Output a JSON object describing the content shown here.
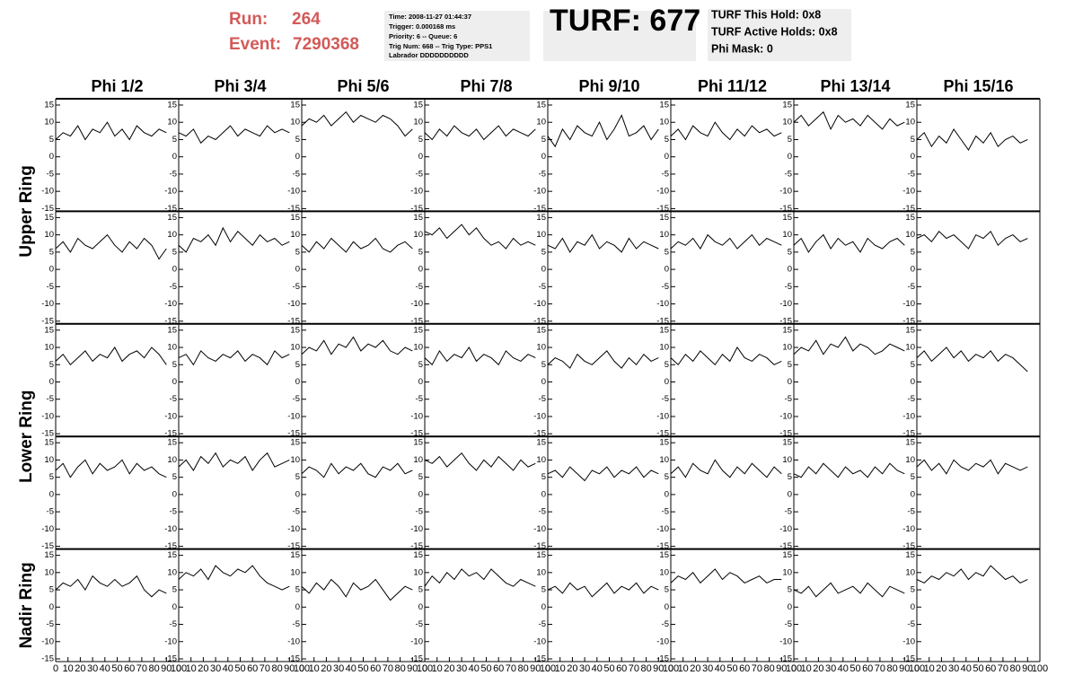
{
  "header": {
    "run_label": "Run:",
    "run": "264",
    "event_label": "Event:",
    "event": "7290368",
    "info": [
      "Time: 2008-11-27 01:44:37",
      "Trigger: 0.000168 ms",
      "Priority: 6 -- Queue: 6",
      "Trig Num: 668 -- Trig Type: PPS1",
      "Labrador DDDDDDDDDD"
    ],
    "turf": "TURF: 677",
    "turf_info": [
      "TURF This Hold: 0x8",
      "TURF Active Holds: 0x8",
      "Phi Mask: 0"
    ]
  },
  "chart_data": {
    "type": "line",
    "columns": [
      "Phi 1/2",
      "Phi 3/4",
      "Phi 5/6",
      "Phi 7/8",
      "Phi 9/10",
      "Phi 11/12",
      "Phi 13/14",
      "Phi 15/16"
    ],
    "row_labels": [
      "Upper Ring",
      "Lower Ring",
      "Nadir Ring"
    ],
    "color": "#000000",
    "xlim": [
      0,
      100
    ],
    "xticks": [
      0,
      10,
      20,
      30,
      40,
      50,
      60,
      70,
      80,
      90,
      100
    ],
    "ylim": [
      -15,
      15
    ],
    "yticks": [
      -15,
      -10,
      -5,
      0,
      5,
      10,
      15
    ],
    "x": [
      0,
      6,
      12,
      18,
      24,
      30,
      36,
      42,
      48,
      54,
      60,
      66,
      72,
      78,
      84,
      90
    ],
    "series": [
      {
        "values": [
          5,
          7,
          6,
          9,
          5,
          8,
          7,
          10,
          6,
          8,
          5,
          9,
          7,
          6,
          8,
          7
        ]
      },
      {
        "values": [
          7,
          6,
          8,
          4,
          6,
          5,
          7,
          9,
          6,
          8,
          7,
          6,
          9,
          7,
          8,
          7
        ]
      },
      {
        "values": [
          9,
          11,
          10,
          12,
          9,
          11,
          13,
          10,
          12,
          11,
          10,
          12,
          11,
          9,
          6,
          8
        ]
      },
      {
        "values": [
          7,
          5,
          8,
          6,
          9,
          7,
          6,
          8,
          5,
          7,
          9,
          6,
          8,
          7,
          6,
          8
        ]
      },
      {
        "values": [
          6,
          3,
          8,
          5,
          9,
          7,
          6,
          10,
          5,
          8,
          12,
          6,
          7,
          9,
          5,
          8
        ]
      },
      {
        "values": [
          6,
          8,
          5,
          9,
          7,
          6,
          10,
          7,
          5,
          8,
          6,
          9,
          7,
          8,
          6,
          7
        ]
      },
      {
        "values": [
          10,
          12,
          9,
          11,
          13,
          8,
          12,
          10,
          11,
          9,
          12,
          10,
          8,
          11,
          9,
          10
        ]
      },
      {
        "values": [
          5,
          7,
          3,
          6,
          4,
          8,
          5,
          2,
          6,
          4,
          7,
          3,
          5,
          6,
          4,
          5
        ]
      },
      {
        "values": [
          6,
          8,
          5,
          9,
          7,
          6,
          8,
          10,
          7,
          5,
          8,
          6,
          9,
          7,
          3,
          6
        ]
      },
      {
        "values": [
          7,
          5,
          9,
          8,
          10,
          7,
          12,
          8,
          11,
          9,
          7,
          10,
          8,
          9,
          7,
          8
        ]
      },
      {
        "values": [
          7,
          5,
          8,
          6,
          9,
          7,
          5,
          8,
          6,
          7,
          9,
          6,
          5,
          7,
          8,
          6
        ]
      },
      {
        "values": [
          11,
          10,
          12,
          9,
          11,
          13,
          10,
          12,
          9,
          7,
          8,
          6,
          9,
          7,
          8,
          7
        ]
      },
      {
        "values": [
          7,
          6,
          9,
          5,
          8,
          7,
          10,
          6,
          8,
          7,
          5,
          9,
          6,
          8,
          7,
          6
        ]
      },
      {
        "values": [
          6,
          8,
          7,
          9,
          6,
          10,
          8,
          7,
          9,
          6,
          8,
          10,
          7,
          9,
          8,
          7
        ]
      },
      {
        "values": [
          7,
          9,
          5,
          8,
          10,
          6,
          9,
          7,
          8,
          5,
          9,
          7,
          6,
          8,
          9,
          7
        ]
      },
      {
        "values": [
          9,
          10,
          8,
          11,
          9,
          10,
          8,
          6,
          10,
          9,
          11,
          7,
          9,
          10,
          8,
          9
        ]
      },
      {
        "values": [
          6,
          8,
          5,
          7,
          9,
          6,
          8,
          7,
          10,
          6,
          8,
          9,
          7,
          10,
          8,
          5
        ]
      },
      {
        "values": [
          7,
          8,
          5,
          9,
          7,
          6,
          8,
          7,
          9,
          6,
          8,
          7,
          5,
          9,
          7,
          8
        ]
      },
      {
        "values": [
          8,
          10,
          9,
          12,
          8,
          11,
          10,
          13,
          9,
          11,
          10,
          12,
          9,
          8,
          10,
          9
        ]
      },
      {
        "values": [
          7,
          5,
          9,
          6,
          8,
          7,
          10,
          6,
          8,
          7,
          5,
          9,
          7,
          6,
          8,
          7
        ]
      },
      {
        "values": [
          5,
          7,
          6,
          4,
          8,
          6,
          5,
          7,
          9,
          6,
          4,
          7,
          5,
          8,
          6,
          7
        ]
      },
      {
        "values": [
          7,
          5,
          8,
          6,
          9,
          7,
          5,
          8,
          6,
          10,
          7,
          6,
          8,
          7,
          5,
          6
        ]
      },
      {
        "values": [
          8,
          10,
          9,
          12,
          8,
          11,
          10,
          13,
          9,
          11,
          10,
          8,
          9,
          11,
          10,
          9
        ]
      },
      {
        "values": [
          7,
          9,
          6,
          8,
          10,
          7,
          9,
          6,
          8,
          7,
          9,
          6,
          8,
          7,
          5,
          3
        ]
      },
      {
        "values": [
          7,
          9,
          5,
          8,
          10,
          6,
          9,
          7,
          8,
          10,
          6,
          9,
          7,
          8,
          6,
          5
        ]
      },
      {
        "values": [
          8,
          10,
          7,
          11,
          9,
          12,
          8,
          10,
          9,
          11,
          7,
          10,
          12,
          8,
          9,
          10
        ]
      },
      {
        "values": [
          6,
          8,
          7,
          5,
          9,
          6,
          8,
          7,
          9,
          6,
          5,
          8,
          7,
          9,
          6,
          7
        ]
      },
      {
        "values": [
          10,
          9,
          11,
          8,
          10,
          12,
          9,
          7,
          10,
          8,
          11,
          9,
          7,
          10,
          8,
          9
        ]
      },
      {
        "values": [
          6,
          7,
          5,
          8,
          6,
          4,
          7,
          6,
          8,
          5,
          7,
          6,
          8,
          5,
          7,
          6
        ]
      },
      {
        "values": [
          6,
          8,
          5,
          9,
          7,
          6,
          10,
          7,
          5,
          8,
          6,
          9,
          7,
          5,
          8,
          6
        ]
      },
      {
        "values": [
          6,
          5,
          8,
          6,
          9,
          7,
          5,
          8,
          6,
          7,
          5,
          8,
          6,
          9,
          7,
          6
        ]
      },
      {
        "values": [
          8,
          10,
          7,
          9,
          6,
          10,
          8,
          7,
          9,
          8,
          10,
          6,
          9,
          8,
          7,
          8
        ]
      },
      {
        "values": [
          5,
          7,
          6,
          8,
          5,
          9,
          7,
          6,
          8,
          6,
          7,
          9,
          5,
          3,
          5,
          4
        ]
      },
      {
        "values": [
          8,
          10,
          9,
          11,
          8,
          12,
          10,
          9,
          11,
          10,
          12,
          9,
          7,
          6,
          5,
          6
        ]
      },
      {
        "values": [
          6,
          4,
          7,
          5,
          8,
          6,
          3,
          7,
          5,
          6,
          8,
          5,
          2,
          4,
          6,
          5
        ]
      },
      {
        "values": [
          6,
          9,
          7,
          10,
          8,
          11,
          9,
          10,
          8,
          11,
          9,
          7,
          6,
          8,
          7,
          6
        ]
      },
      {
        "values": [
          5,
          6,
          4,
          7,
          5,
          6,
          3,
          5,
          7,
          4,
          6,
          5,
          7,
          4,
          6,
          5
        ]
      },
      {
        "values": [
          7,
          9,
          8,
          10,
          7,
          9,
          11,
          8,
          10,
          9,
          7,
          8,
          9,
          7,
          8,
          8
        ]
      },
      {
        "values": [
          5,
          4,
          6,
          3,
          5,
          7,
          4,
          5,
          6,
          4,
          7,
          5,
          3,
          6,
          5,
          4
        ]
      },
      {
        "values": [
          8,
          7,
          9,
          8,
          10,
          9,
          11,
          8,
          10,
          9,
          12,
          10,
          8,
          9,
          7,
          8
        ]
      }
    ]
  }
}
